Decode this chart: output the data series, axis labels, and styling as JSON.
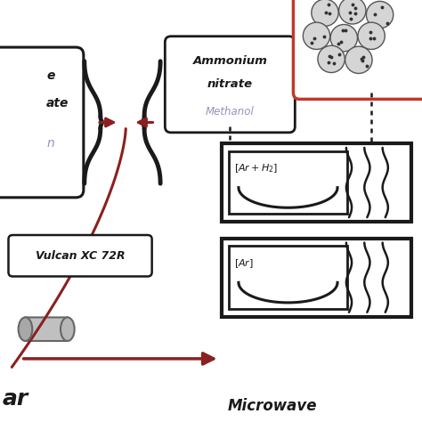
{
  "dark": "#1a1a1a",
  "red": "#8b2020",
  "red_border": "#c0392b",
  "purple": "#9b8fc0",
  "gray_fill": "#d0d0d0",
  "white": "#ffffff",
  "bg": "#ffffff",
  "ammonium_line1": "Ammonium",
  "ammonium_line2": "nitrate",
  "methanol": "Methanol",
  "vulcan": "Vulcan XC 72R",
  "ar_h2": "[Ar+H$_2$]",
  "ar": "[Ar]",
  "microwave_label": "Microwave",
  "left_text1": "e",
  "left_text2": "ate",
  "left_text3": "n"
}
